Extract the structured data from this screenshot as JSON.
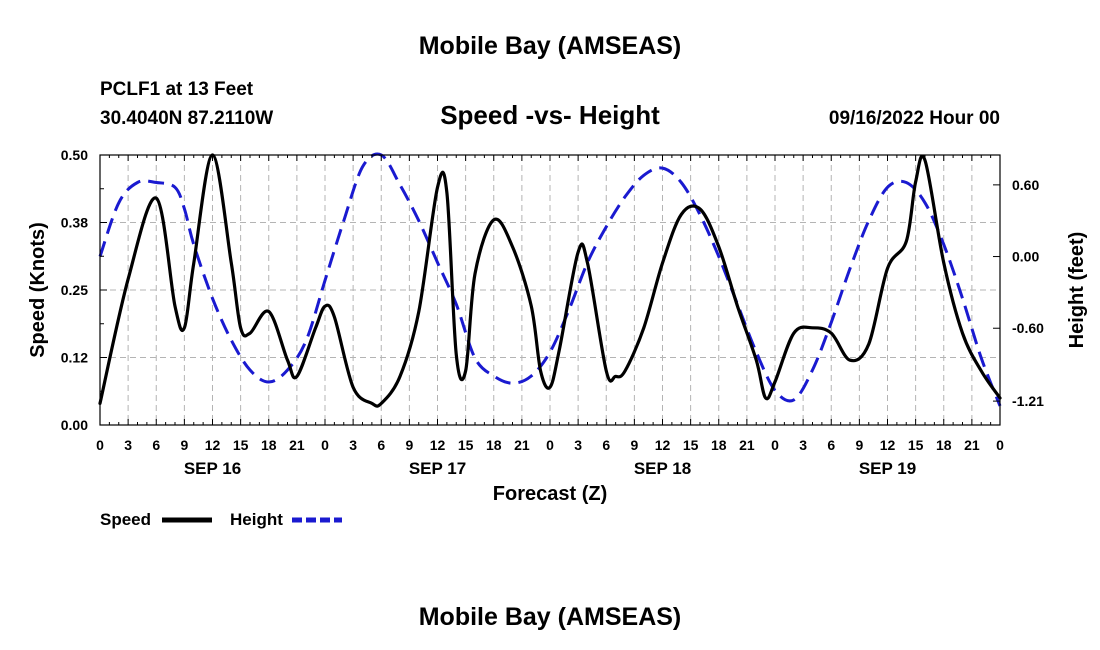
{
  "page": {
    "title": "Mobile Bay (AMSEAS)",
    "station": "PCLF1 at 13 Feet",
    "coords": "30.4040N  87.2110W",
    "datetime": "09/16/2022 Hour 00",
    "footer_title": "Mobile Bay (AMSEAS)"
  },
  "legend": {
    "speed": "Speed",
    "height": "Height"
  },
  "colors": {
    "speed": "#000000",
    "height": "#1a1ad0",
    "grid": "#b4b4b4"
  },
  "chart_data": {
    "type": "line",
    "title": "Speed -vs- Height",
    "xlabel": "Forecast (Z)",
    "ylabel": "Speed (Knots)",
    "y2label": "Height (feet)",
    "x_range_hours": [
      0,
      96
    ],
    "ylim": [
      0,
      0.5
    ],
    "y2lim": [
      -1.41,
      0.85
    ],
    "y_ticks": [
      "0.00",
      "0.12",
      "0.25",
      "0.38",
      "0.50"
    ],
    "y2_ticks": [
      {
        "value": 0.6,
        "label": "0.60"
      },
      {
        "value": 0.0,
        "label": "0.00"
      },
      {
        "value": -0.6,
        "label": "-0.60"
      },
      {
        "value": -1.21,
        "label": "-1.21"
      }
    ],
    "x_tick_labels": [
      "0",
      "3",
      "6",
      "9",
      "12",
      "15",
      "18",
      "21",
      "0",
      "3",
      "6",
      "9",
      "12",
      "15",
      "18",
      "21",
      "0",
      "3",
      "6",
      "9",
      "12",
      "15",
      "18",
      "21",
      "0",
      "3",
      "6",
      "9",
      "12",
      "15",
      "18",
      "21",
      "0"
    ],
    "day_labels": [
      {
        "hour": 12,
        "label": "SEP 16"
      },
      {
        "hour": 36,
        "label": "SEP 17"
      },
      {
        "hour": 60,
        "label": "SEP 18"
      },
      {
        "hour": 84,
        "label": "SEP 19"
      }
    ],
    "grid": true,
    "legend_position": "bottom-left",
    "series": [
      {
        "name": "Speed",
        "axis": "left",
        "style": "solid",
        "x": [
          0,
          3,
          6,
          8,
          9,
          10,
          12,
          14,
          15,
          16,
          18,
          20,
          21,
          23,
          24,
          25,
          27,
          29,
          30,
          32,
          34,
          36,
          37,
          38,
          39,
          40,
          42,
          44,
          46,
          47,
          48,
          49,
          51,
          52,
          54,
          55,
          56,
          58,
          60,
          62,
          64,
          66,
          68,
          70,
          71,
          72,
          74,
          76,
          78,
          80,
          82,
          84,
          86,
          87,
          88,
          90,
          92,
          94,
          96
        ],
        "values": [
          0.04,
          0.27,
          0.42,
          0.22,
          0.18,
          0.3,
          0.5,
          0.3,
          0.18,
          0.17,
          0.21,
          0.12,
          0.09,
          0.18,
          0.22,
          0.2,
          0.07,
          0.04,
          0.04,
          0.09,
          0.21,
          0.44,
          0.43,
          0.13,
          0.1,
          0.28,
          0.38,
          0.33,
          0.22,
          0.1,
          0.07,
          0.14,
          0.32,
          0.3,
          0.1,
          0.09,
          0.1,
          0.18,
          0.3,
          0.39,
          0.4,
          0.33,
          0.22,
          0.12,
          0.05,
          0.08,
          0.17,
          0.18,
          0.17,
          0.12,
          0.15,
          0.29,
          0.34,
          0.45,
          0.49,
          0.3,
          0.17,
          0.1,
          0.05
        ]
      },
      {
        "name": "Height",
        "axis": "right",
        "style": "dashed",
        "x": [
          0,
          2,
          4,
          6,
          8,
          9,
          10,
          12,
          14,
          16,
          18,
          20,
          22,
          24,
          26,
          28,
          30,
          32,
          34,
          36,
          38,
          40,
          42,
          44,
          46,
          48,
          50,
          52,
          54,
          56,
          58,
          60,
          62,
          64,
          66,
          68,
          70,
          72,
          74,
          76,
          78,
          80,
          82,
          84,
          86,
          88,
          90,
          92,
          94,
          96
        ],
        "values": [
          0.0,
          0.45,
          0.62,
          0.62,
          0.58,
          0.4,
          0.1,
          -0.35,
          -0.7,
          -0.95,
          -1.05,
          -0.95,
          -0.7,
          -0.2,
          0.3,
          0.75,
          0.85,
          0.6,
          0.3,
          -0.05,
          -0.4,
          -0.85,
          -1.0,
          -1.06,
          -1.0,
          -0.8,
          -0.45,
          -0.05,
          0.25,
          0.5,
          0.68,
          0.74,
          0.62,
          0.35,
          0.0,
          -0.4,
          -0.8,
          -1.12,
          -1.2,
          -0.95,
          -0.55,
          -0.1,
          0.3,
          0.58,
          0.62,
          0.45,
          0.1,
          -0.35,
          -0.85,
          -1.25
        ]
      }
    ]
  }
}
